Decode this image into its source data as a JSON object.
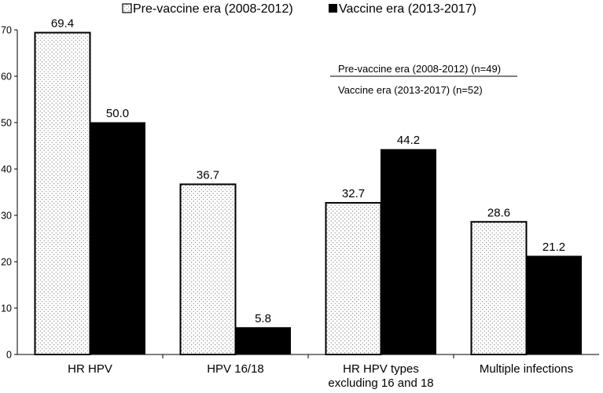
{
  "chart_data": {
    "type": "bar",
    "title": "",
    "xlabel": "",
    "ylabel": "",
    "ylim": [
      0,
      70
    ],
    "yticks": [
      0,
      10,
      20,
      30,
      40,
      50,
      60,
      70
    ],
    "categories": [
      "HR HPV",
      "HPV 16/18",
      "HR HPV types\nexcluding 16 and 18",
      "Multiple infections"
    ],
    "series": [
      {
        "name": "Pre-vaccine era (2008-2012)",
        "values": [
          69.4,
          36.7,
          32.7,
          28.6
        ],
        "fill": "dotted",
        "color": "#ffffff"
      },
      {
        "name": "Vaccine era (2013-2017)",
        "values": [
          50.0,
          5.8,
          44.2,
          21.2
        ],
        "fill": "solid",
        "color": "#000000"
      }
    ],
    "value_labels": [
      [
        "69.4",
        "36.7",
        "32.7",
        "28.6"
      ],
      [
        "50.0",
        "5.8",
        "44.2",
        "21.2"
      ]
    ],
    "legend_position": "top",
    "annotations": [
      "Pre-vaccine era (2008-2012) (n=49)",
      "Vaccine era (2013-2017) (n=52)"
    ],
    "grid": false
  }
}
